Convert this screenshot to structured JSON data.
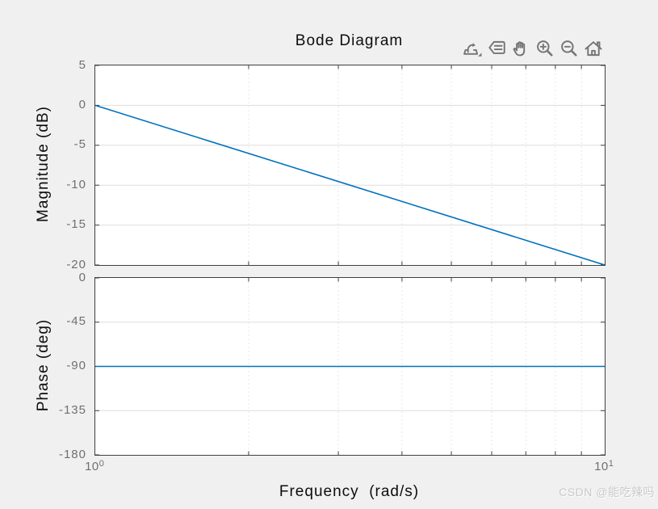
{
  "figure": {
    "watermark": "CSDN @能吃辣吗"
  },
  "toolbar": {
    "icons": [
      "export",
      "datatips",
      "pan",
      "zoom-in",
      "zoom-out",
      "restore-view"
    ]
  },
  "colors": {
    "background": "#f0f0f0",
    "plot_background": "#ffffff",
    "axis": "#3f3f3f",
    "grid_horizontal": "#dedede",
    "grid_vertical": "#e6e6e6",
    "line": "#0072BD",
    "tick_label": "#707070",
    "text": "#0d0d0d",
    "watermark": "#c9c9c9",
    "icon": "#757575"
  },
  "chart_data": [
    {
      "type": "line",
      "title": "Bode Diagram",
      "ylabel": "Magnitude (dB)",
      "xscale": "log",
      "xlim": [
        1,
        10
      ],
      "ylim": [
        -20,
        5
      ],
      "yticks": [
        5,
        0,
        -5,
        -10,
        -15,
        -20
      ],
      "xticks_minor": [
        2,
        3,
        4,
        5,
        6,
        7,
        8,
        9
      ],
      "grid": true,
      "legend": "none",
      "series": [
        {
          "name": "magnitude-response",
          "x": [
            1,
            10
          ],
          "y": [
            0,
            -20
          ]
        }
      ]
    },
    {
      "type": "line",
      "ylabel": "Phase (deg)",
      "xlabel": "Frequency  (rad/s)",
      "xscale": "log",
      "xlim": [
        1,
        10
      ],
      "ylim": [
        -180,
        0
      ],
      "yticks": [
        0,
        -45,
        -90,
        -135,
        -180
      ],
      "xticks_minor": [
        2,
        3,
        4,
        5,
        6,
        7,
        8,
        9
      ],
      "xticks": [
        {
          "base": "10",
          "exp": "0"
        },
        {
          "base": "10",
          "exp": "1"
        }
      ],
      "grid": true,
      "legend": "none",
      "series": [
        {
          "name": "phase-response",
          "x": [
            1,
            10
          ],
          "y": [
            -90,
            -90
          ]
        }
      ]
    }
  ]
}
